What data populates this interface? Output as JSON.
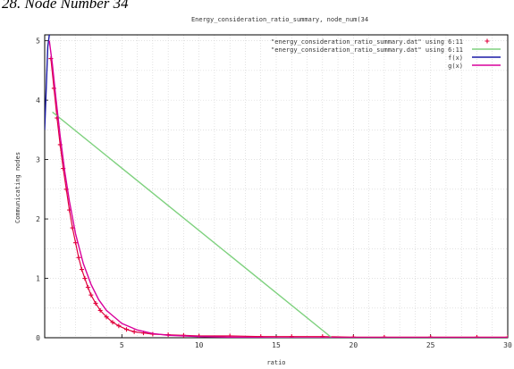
{
  "caption": "28. Node Number 34",
  "chart_data": {
    "type": "line",
    "title": "Energy_consideration_ratio_summary, node_num(34",
    "xlabel": "ratio",
    "ylabel": "Communicating nodes",
    "xlim": [
      0,
      30
    ],
    "ylim": [
      0,
      5.1
    ],
    "xticks": [
      5,
      10,
      15,
      20,
      25,
      30
    ],
    "yticks": [
      0,
      1,
      2,
      3,
      4,
      5
    ],
    "grid": true,
    "legend": "top-right",
    "series": [
      {
        "name": "\"energy_consideration_ratio_summary.dat\" using 6:11",
        "style": "points",
        "color": "#e0003c",
        "x": [
          0.4,
          0.6,
          0.8,
          1.0,
          1.2,
          1.4,
          1.6,
          1.8,
          2.0,
          2.2,
          2.4,
          2.6,
          2.8,
          3.0,
          3.3,
          3.6,
          4.0,
          4.4,
          4.8,
          5.3,
          5.8,
          6.4,
          7.0,
          8.0,
          9.0,
          10.0,
          12.0,
          14.0,
          16.0,
          18.0,
          20.0,
          22.0,
          25.0,
          28.0,
          30.0
        ],
        "y": [
          4.7,
          4.2,
          3.7,
          3.25,
          2.85,
          2.5,
          2.15,
          1.85,
          1.6,
          1.35,
          1.15,
          1.0,
          0.85,
          0.72,
          0.58,
          0.46,
          0.35,
          0.26,
          0.2,
          0.14,
          0.1,
          0.08,
          0.06,
          0.05,
          0.04,
          0.03,
          0.03,
          0.02,
          0.02,
          0.02,
          0.01,
          0.01,
          0.01,
          0.01,
          0.01
        ]
      },
      {
        "name": "\"energy_consideration_ratio_summary.dat\" using 6:11",
        "style": "line",
        "color": "#7fd17f",
        "x": [
          0.5,
          18.6
        ],
        "y": [
          3.8,
          0.0
        ]
      },
      {
        "name": "f(x)",
        "style": "line",
        "color": "#1a1aa6",
        "x": [
          0.0,
          0.1,
          0.2,
          0.3,
          0.35
        ],
        "y": [
          3.5,
          4.2,
          4.9,
          5.1,
          5.1
        ]
      },
      {
        "name": "g(x)",
        "style": "line",
        "color": "#d9009c",
        "x": [
          0.3,
          0.5,
          0.7,
          1.0,
          1.3,
          1.6,
          2.0,
          2.5,
          3.0,
          3.5,
          4.0,
          5.0,
          6.0,
          7.0,
          8.0,
          10.0,
          12.0,
          15.0,
          20.0,
          25.0,
          30.0
        ],
        "y": [
          5.0,
          4.6,
          4.1,
          3.4,
          2.8,
          2.3,
          1.75,
          1.25,
          0.9,
          0.64,
          0.46,
          0.24,
          0.13,
          0.07,
          0.04,
          0.02,
          0.01,
          0.0,
          0.0,
          0.0,
          0.0
        ]
      }
    ]
  }
}
